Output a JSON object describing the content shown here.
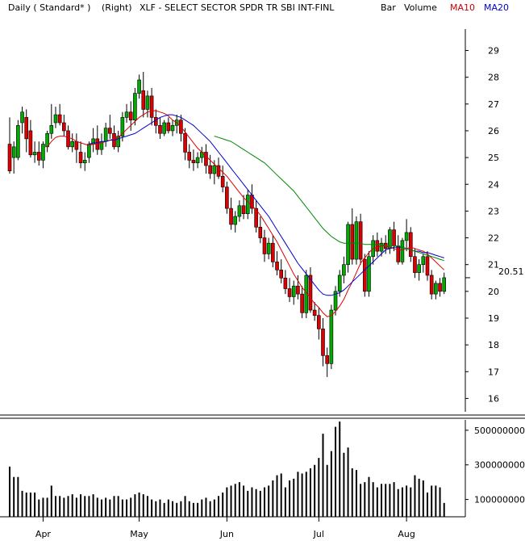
{
  "header": {
    "items": [
      {
        "text": "Daily ( Standard* )",
        "color": "#000000"
      },
      {
        "text": "(Right)",
        "color": "#000000"
      },
      {
        "text": "XLF - SELECT SECTOR SPDR TR SBI INT-FINL",
        "color": "#000000"
      },
      {
        "text": "Bar",
        "color": "#000000"
      },
      {
        "text": "Volume",
        "color": "#000000"
      },
      {
        "text": "MA10",
        "color": "#cc0000"
      },
      {
        "text": "MA20",
        "color": "#0000cc"
      }
    ]
  },
  "colors": {
    "up": "#00aa00",
    "down": "#dd0000",
    "ma10": "#dd0000",
    "ma20": "#0000cc",
    "ma_long": "#008800",
    "volume": "#000000",
    "last_price_marker": "#000000"
  },
  "chart_data": [
    {
      "type": "candlestick",
      "title": "XLF - SELECT SECTOR SPDR TR SBI INT-FINL",
      "x_tick_labels": [
        "Apr",
        "May",
        "Jun",
        "Jul",
        "Aug"
      ],
      "x_tick_bar_index": [
        8,
        31,
        52,
        74,
        95
      ],
      "y_tick_labels": [
        "29",
        "28",
        "27",
        "26",
        "25",
        "24",
        "23",
        "22",
        "21",
        "20",
        "19",
        "18",
        "17",
        "16"
      ],
      "ylim": [
        15.5,
        29.8
      ],
      "last_price_label": "20.51",
      "last_price": 20.51,
      "grid": false,
      "ohlc": [
        [
          25.5,
          26.5,
          24.4,
          24.5
        ],
        [
          25.0,
          25.6,
          24.4,
          25.4
        ],
        [
          25.0,
          26.4,
          24.9,
          26.2
        ],
        [
          26.3,
          26.9,
          25.9,
          26.7
        ],
        [
          26.5,
          26.8,
          25.2,
          25.7
        ],
        [
          26.0,
          26.4,
          25.0,
          25.1
        ],
        [
          25.1,
          25.6,
          24.8,
          25.2
        ],
        [
          25.2,
          25.6,
          24.7,
          24.9
        ],
        [
          24.9,
          25.6,
          24.6,
          25.5
        ],
        [
          25.4,
          26.0,
          25.2,
          25.9
        ],
        [
          25.9,
          27.0,
          25.7,
          26.2
        ],
        [
          26.3,
          26.9,
          26.1,
          26.6
        ],
        [
          26.6,
          27.0,
          26.2,
          26.3
        ],
        [
          26.3,
          26.6,
          25.8,
          26.0
        ],
        [
          26.0,
          26.2,
          25.3,
          25.4
        ],
        [
          25.4,
          25.9,
          25.2,
          25.6
        ],
        [
          25.6,
          25.9,
          24.8,
          25.3
        ],
        [
          25.2,
          25.6,
          24.6,
          24.8
        ],
        [
          24.8,
          25.2,
          24.5,
          24.9
        ],
        [
          25.0,
          25.6,
          24.8,
          25.5
        ],
        [
          25.5,
          26.1,
          25.2,
          25.7
        ],
        [
          25.7,
          26.2,
          25.1,
          25.3
        ],
        [
          25.3,
          25.9,
          25.1,
          25.6
        ],
        [
          25.6,
          26.3,
          25.4,
          26.1
        ],
        [
          26.1,
          26.6,
          25.7,
          25.9
        ],
        [
          25.9,
          26.2,
          25.3,
          25.4
        ],
        [
          25.4,
          26.0,
          25.2,
          25.8
        ],
        [
          25.8,
          26.7,
          25.6,
          26.5
        ],
        [
          26.5,
          27.0,
          26.3,
          26.7
        ],
        [
          26.7,
          27.1,
          26.0,
          26.4
        ],
        [
          26.4,
          27.6,
          26.2,
          27.4
        ],
        [
          27.4,
          28.1,
          27.2,
          27.9
        ],
        [
          27.5,
          28.2,
          26.5,
          26.8
        ],
        [
          26.8,
          27.5,
          26.5,
          27.3
        ],
        [
          27.3,
          27.6,
          26.2,
          26.5
        ],
        [
          26.5,
          26.8,
          25.9,
          26.2
        ],
        [
          26.2,
          26.5,
          25.7,
          25.9
        ],
        [
          25.9,
          26.4,
          25.8,
          26.3
        ],
        [
          26.3,
          26.5,
          25.9,
          26.0
        ],
        [
          26.0,
          26.4,
          25.8,
          26.2
        ],
        [
          26.2,
          26.6,
          25.9,
          26.4
        ],
        [
          26.4,
          26.6,
          25.6,
          25.9
        ],
        [
          25.9,
          26.1,
          24.9,
          25.2
        ],
        [
          25.2,
          25.5,
          24.6,
          24.9
        ],
        [
          24.9,
          25.3,
          24.5,
          24.8
        ],
        [
          24.8,
          25.2,
          24.6,
          25.0
        ],
        [
          25.0,
          25.4,
          24.8,
          25.2
        ],
        [
          25.2,
          25.5,
          24.4,
          24.7
        ],
        [
          24.7,
          25.1,
          24.2,
          24.4
        ],
        [
          24.4,
          24.9,
          24.0,
          24.7
        ],
        [
          24.7,
          25.0,
          24.2,
          24.3
        ],
        [
          24.3,
          24.7,
          23.7,
          23.9
        ],
        [
          23.9,
          24.1,
          22.9,
          23.1
        ],
        [
          23.1,
          23.5,
          22.3,
          22.5
        ],
        [
          22.5,
          23.0,
          22.2,
          22.8
        ],
        [
          22.8,
          23.4,
          22.6,
          23.2
        ],
        [
          23.2,
          23.6,
          22.7,
          22.9
        ],
        [
          22.9,
          23.8,
          22.7,
          23.6
        ],
        [
          23.6,
          24.0,
          22.9,
          23.1
        ],
        [
          23.1,
          23.4,
          22.2,
          22.4
        ],
        [
          22.4,
          22.8,
          21.8,
          22.0
        ],
        [
          22.0,
          22.3,
          21.1,
          21.4
        ],
        [
          21.4,
          22.0,
          21.2,
          21.8
        ],
        [
          21.8,
          22.1,
          20.9,
          21.1
        ],
        [
          21.1,
          21.5,
          20.6,
          20.8
        ],
        [
          20.8,
          21.2,
          20.3,
          20.5
        ],
        [
          20.5,
          20.8,
          19.9,
          20.1
        ],
        [
          20.1,
          20.5,
          19.6,
          19.8
        ],
        [
          19.8,
          20.4,
          19.5,
          20.2
        ],
        [
          20.2,
          20.6,
          19.7,
          19.9
        ],
        [
          19.9,
          20.2,
          19.0,
          19.2
        ],
        [
          19.2,
          20.8,
          19.0,
          20.6
        ],
        [
          20.6,
          20.9,
          19.2,
          19.3
        ],
        [
          19.3,
          19.6,
          18.9,
          19.1
        ],
        [
          19.1,
          19.4,
          18.2,
          18.6
        ],
        [
          18.6,
          19.0,
          17.2,
          17.6
        ],
        [
          17.6,
          17.9,
          16.8,
          17.3
        ],
        [
          17.3,
          19.5,
          17.1,
          19.3
        ],
        [
          19.3,
          20.2,
          19.1,
          20.0
        ],
        [
          20.0,
          20.8,
          19.8,
          20.6
        ],
        [
          20.6,
          21.3,
          20.3,
          21.0
        ],
        [
          21.0,
          22.6,
          20.7,
          22.5
        ],
        [
          22.5,
          23.1,
          21.0,
          21.2
        ],
        [
          21.2,
          22.8,
          21.0,
          22.6
        ],
        [
          22.6,
          22.9,
          21.0,
          21.2
        ],
        [
          21.2,
          21.4,
          19.8,
          20.0
        ],
        [
          20.0,
          21.5,
          19.8,
          21.3
        ],
        [
          21.3,
          22.1,
          21.0,
          21.9
        ],
        [
          21.9,
          22.2,
          21.3,
          21.5
        ],
        [
          21.5,
          22.0,
          21.3,
          21.8
        ],
        [
          21.8,
          22.1,
          21.4,
          21.6
        ],
        [
          21.6,
          22.4,
          21.4,
          22.3
        ],
        [
          22.3,
          22.6,
          21.5,
          21.7
        ],
        [
          21.7,
          22.1,
          21.0,
          21.1
        ],
        [
          21.1,
          22.0,
          21.0,
          21.9
        ],
        [
          21.9,
          22.7,
          21.5,
          22.2
        ],
        [
          22.2,
          22.4,
          21.1,
          21.3
        ],
        [
          21.3,
          21.6,
          20.5,
          20.7
        ],
        [
          20.7,
          21.2,
          20.4,
          21.0
        ],
        [
          21.0,
          21.4,
          20.7,
          21.3
        ],
        [
          21.3,
          21.5,
          20.4,
          20.6
        ],
        [
          20.6,
          20.8,
          19.7,
          19.9
        ],
        [
          19.9,
          20.4,
          19.7,
          20.3
        ],
        [
          20.3,
          20.5,
          19.8,
          20.0
        ],
        [
          20.0,
          20.7,
          19.9,
          20.51
        ]
      ],
      "series": [
        {
          "name": "MA10",
          "values": [
            null,
            null,
            null,
            null,
            null,
            null,
            null,
            null,
            null,
            25.4,
            25.6,
            25.75,
            25.8,
            25.8,
            25.75,
            25.7,
            25.6,
            25.55,
            25.5,
            25.45,
            25.5,
            25.5,
            25.55,
            25.6,
            25.65,
            25.7,
            25.75,
            25.9,
            26.05,
            26.2,
            26.35,
            26.5,
            26.6,
            26.7,
            26.75,
            26.75,
            26.7,
            26.65,
            26.55,
            26.4,
            26.3,
            26.15,
            25.95,
            25.75,
            25.55,
            25.35,
            25.2,
            25.05,
            24.9,
            24.75,
            24.6,
            24.45,
            24.3,
            24.1,
            23.9,
            23.7,
            23.5,
            23.35,
            23.2,
            23.05,
            22.85,
            22.6,
            22.35,
            22.1,
            21.85,
            21.55,
            21.25,
            20.95,
            20.65,
            20.4,
            20.15,
            19.95,
            19.75,
            19.55,
            19.4,
            19.2,
            19.05,
            19.1,
            19.25,
            19.45,
            19.7,
            20.05,
            20.35,
            20.7,
            21.05,
            21.25,
            21.45,
            21.6,
            21.65,
            21.7,
            21.7,
            21.65,
            21.6,
            21.55,
            21.55,
            21.6,
            21.65,
            21.6,
            21.55,
            21.5,
            21.4,
            21.25,
            21.1,
            20.95,
            20.8
          ]
        },
        {
          "name": "MA20",
          "values": [
            null,
            null,
            null,
            null,
            null,
            null,
            null,
            null,
            null,
            null,
            null,
            null,
            null,
            null,
            null,
            null,
            null,
            null,
            null,
            25.5,
            25.55,
            25.55,
            25.6,
            25.6,
            25.65,
            25.65,
            25.7,
            25.75,
            25.8,
            25.85,
            25.9,
            26.0,
            26.1,
            26.2,
            26.3,
            26.4,
            26.5,
            26.55,
            26.6,
            26.6,
            26.55,
            26.5,
            26.4,
            26.3,
            26.2,
            26.05,
            25.9,
            25.75,
            25.6,
            25.4,
            25.2,
            25.0,
            24.8,
            24.6,
            24.4,
            24.2,
            24.0,
            23.8,
            23.6,
            23.4,
            23.2,
            23.0,
            22.8,
            22.55,
            22.3,
            22.05,
            21.8,
            21.55,
            21.3,
            21.05,
            20.85,
            20.65,
            20.45,
            20.25,
            20.05,
            19.9,
            19.85,
            19.85,
            19.9,
            19.95,
            20.05,
            20.2,
            20.35,
            20.5,
            20.65,
            20.8,
            20.95,
            21.1,
            21.25,
            21.4,
            21.55,
            21.6,
            21.65,
            21.65,
            21.65,
            21.6,
            21.55,
            21.5,
            21.5,
            21.45,
            21.45,
            21.4,
            21.35,
            21.3,
            21.25
          ]
        },
        {
          "values": [
            null,
            null,
            null,
            null,
            null,
            null,
            null,
            null,
            null,
            null,
            null,
            null,
            null,
            null,
            null,
            null,
            null,
            null,
            null,
            null,
            null,
            null,
            null,
            null,
            null,
            null,
            null,
            null,
            null,
            null,
            null,
            null,
            null,
            null,
            null,
            null,
            null,
            null,
            null,
            null,
            null,
            null,
            null,
            null,
            null,
            null,
            null,
            null,
            null,
            25.8,
            25.75,
            25.7,
            25.65,
            25.6,
            25.5,
            25.4,
            25.3,
            25.2,
            25.1,
            25.0,
            24.9,
            24.8,
            24.65,
            24.5,
            24.35,
            24.2,
            24.05,
            23.9,
            23.75,
            23.55,
            23.35,
            23.15,
            22.95,
            22.75,
            22.55,
            22.35,
            22.2,
            22.05,
            21.95,
            21.85,
            21.8,
            21.8,
            21.8,
            21.8,
            21.8,
            21.75,
            21.75,
            21.75,
            21.75,
            21.75,
            21.7,
            21.7,
            21.7,
            21.7,
            21.65,
            21.6,
            21.55,
            21.5,
            21.45,
            21.4,
            21.35,
            21.3,
            21.25,
            21.2,
            21.15
          ]
        }
      ]
    },
    {
      "type": "bar",
      "title": "Volume",
      "y_tick_labels": [
        "500000000",
        "300000000",
        "100000000"
      ],
      "ylim": [
        0,
        560000000
      ],
      "values": [
        290000000,
        230000000,
        230000000,
        150000000,
        140000000,
        140000000,
        140000000,
        100000000,
        110000000,
        110000000,
        180000000,
        120000000,
        120000000,
        110000000,
        120000000,
        130000000,
        110000000,
        130000000,
        120000000,
        120000000,
        130000000,
        110000000,
        100000000,
        110000000,
        100000000,
        120000000,
        120000000,
        100000000,
        100000000,
        110000000,
        130000000,
        140000000,
        130000000,
        120000000,
        100000000,
        90000000,
        100000000,
        80000000,
        100000000,
        90000000,
        80000000,
        90000000,
        120000000,
        90000000,
        80000000,
        80000000,
        100000000,
        110000000,
        90000000,
        100000000,
        120000000,
        140000000,
        170000000,
        180000000,
        190000000,
        200000000,
        180000000,
        150000000,
        170000000,
        160000000,
        150000000,
        170000000,
        180000000,
        210000000,
        240000000,
        250000000,
        170000000,
        210000000,
        220000000,
        260000000,
        250000000,
        260000000,
        280000000,
        300000000,
        340000000,
        480000000,
        300000000,
        380000000,
        520000000,
        550000000,
        370000000,
        400000000,
        280000000,
        270000000,
        190000000,
        200000000,
        230000000,
        200000000,
        170000000,
        190000000,
        190000000,
        190000000,
        200000000,
        160000000,
        170000000,
        180000000,
        170000000,
        240000000,
        220000000,
        210000000,
        140000000,
        180000000,
        180000000,
        170000000,
        80000000
      ]
    }
  ]
}
